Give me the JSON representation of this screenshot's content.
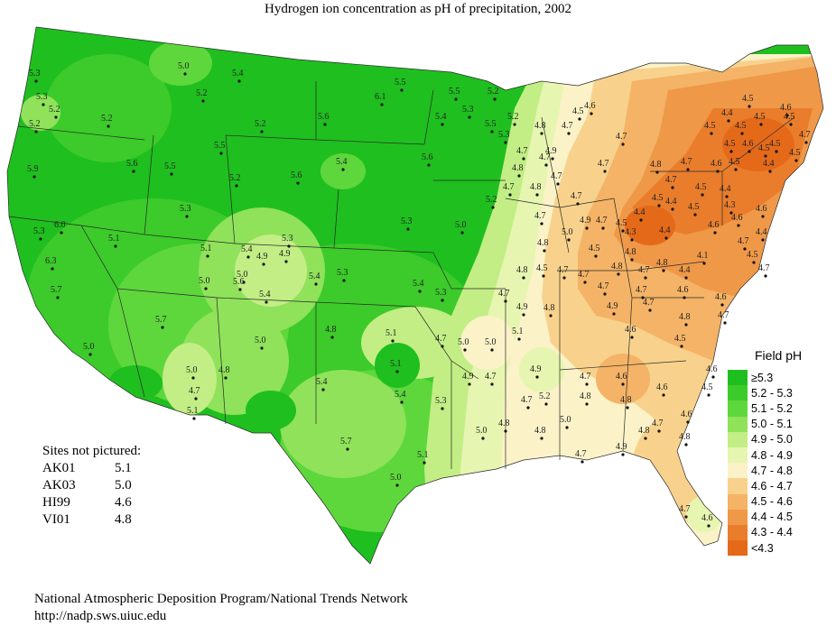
{
  "title": "Hydrogen ion concentration as pH of precipitation, 2002",
  "legend": {
    "title": "Field pH",
    "items": [
      {
        "label": "≥5.3",
        "color": "#1fbf1f"
      },
      {
        "label": "5.2 - 5.3",
        "color": "#3ccb2a"
      },
      {
        "label": "5.1 - 5.2",
        "color": "#5ed73c"
      },
      {
        "label": "5.0 - 5.1",
        "color": "#8fe25a"
      },
      {
        "label": "4.9 - 5.0",
        "color": "#c2ee85"
      },
      {
        "label": "4.8 - 4.9",
        "color": "#e6f5b0"
      },
      {
        "label": "4.7 - 4.8",
        "color": "#fbf2c8"
      },
      {
        "label": "4.6 - 4.7",
        "color": "#f8d28c"
      },
      {
        "label": "4.5 - 4.6",
        "color": "#f4b366"
      },
      {
        "label": "4.4 - 4.5",
        "color": "#ef9848"
      },
      {
        "label": "4.3 - 4.4",
        "color": "#e97d2c"
      },
      {
        "label": "<4.3",
        "color": "#e46a1a"
      }
    ]
  },
  "sites_not_pictured": {
    "heading": "Sites not pictured:",
    "rows": [
      {
        "id": "AK01",
        "value": "5.1"
      },
      {
        "id": "AK03",
        "value": "5.0"
      },
      {
        "id": "HI99",
        "value": "4.6"
      },
      {
        "id": "VI01",
        "value": "4.8"
      }
    ]
  },
  "footer": {
    "line1": "National Atmospheric Deposition Program/National Trends Network",
    "line2": "http://nadp.sws.uiuc.edu"
  },
  "sites": [
    "5.3",
    "5.3",
    "5.2",
    "5.2",
    "5.0",
    "5.4",
    "5.2",
    "5.2",
    "5.6",
    "6.1",
    "5.5",
    "5.6",
    "5.4",
    "5.6",
    "5.5",
    "5.3",
    "5.2",
    "5.5",
    "5.3",
    "5.2",
    "5.2",
    "5.6",
    "5.5",
    "5.9",
    "5.5",
    "5.2",
    "5.4",
    "5.3",
    "6.0",
    "6.3",
    "5.7",
    "5.1",
    "5.3",
    "5.1",
    "5.0",
    "5.4",
    "4.9",
    "5.0",
    "4.9",
    "5.3",
    "5.4",
    "5.6",
    "5.4",
    "5.3",
    "5.3",
    "5.4",
    "5.0",
    "5.3",
    "5.2",
    "5.0",
    "5.7",
    "5.0",
    "4.8",
    "5.1",
    "4.7",
    "5.0",
    "5.0",
    "5.1",
    "5.4",
    "5.1",
    "5.4",
    "5.3",
    "4.9",
    "4.7",
    "4.9",
    "4.7",
    "5.0",
    "5.7",
    "5.1",
    "5.0",
    "5.0",
    "4.8",
    "4.7",
    "5.1",
    "5.2",
    "5.0",
    "4.8",
    "4.8",
    "4.7",
    "4.9",
    "4.7",
    "4.6",
    "4.6",
    "4.8",
    "4.5",
    "4.6",
    "4.7",
    "4.6",
    "4.8",
    "4.8",
    "4.8",
    "4.7",
    "4.6",
    "4.8",
    "4.6",
    "4.5",
    "4.7",
    "4.8",
    "4.7",
    "4.6",
    "4.6",
    "4.7",
    "4.4",
    "4.1",
    "4.4",
    "4.3",
    "4.4",
    "4.5",
    "4.4",
    "4.5",
    "4.3",
    "4.5",
    "4.4",
    "4.5",
    "4.6",
    "4.5",
    "4.4",
    "4.5",
    "4.5",
    "4.5",
    "4.7",
    "4.6",
    "4.5",
    "4.5",
    "4.5",
    "4.5",
    "4.5",
    "4.4",
    "4.6",
    "4.7",
    "4.7",
    "4.5",
    "4.6",
    "4.6",
    "4.7",
    "4.5",
    "4.4",
    "4.6",
    "4.7",
    "4.5",
    "4.8",
    "4.7",
    "4.7",
    "4.6",
    "4.5",
    "4.7",
    "4.8",
    "4.7",
    "4.7",
    "4.8",
    "4.7",
    "4.8",
    "4.9",
    "4.7",
    "4.7",
    "4.7",
    "4.8",
    "5.0",
    "4.9",
    "4.7",
    "4.5",
    "4.7",
    "4.8",
    "4.7",
    "4.9",
    "4.7",
    "4.7",
    "4.9",
    "4.8",
    "4.8",
    "4.7",
    "4.8",
    "4.5"
  ]
}
